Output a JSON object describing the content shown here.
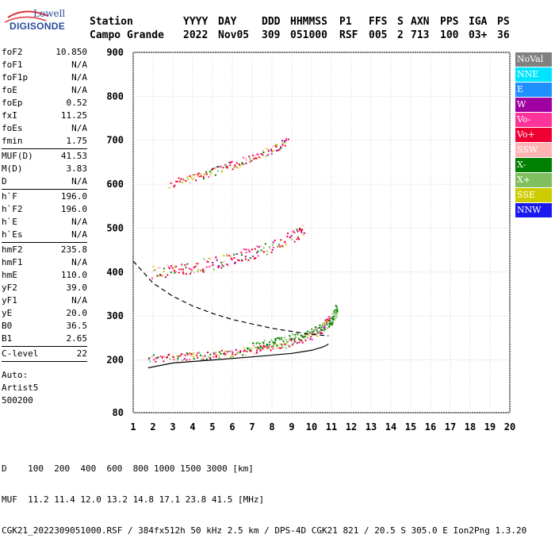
{
  "logo": {
    "line1": "Lowell",
    "line2": "DIGISONDE"
  },
  "header": {
    "row1": [
      "Station",
      "YYYY",
      "DAY",
      "DDD",
      "HHMMSS",
      "P1",
      "FFS",
      "S",
      "AXN",
      "PPS",
      "IGA",
      "PS"
    ],
    "row2": [
      "Campo Grande",
      "2022",
      "Nov05",
      "309",
      "051000",
      "RSF",
      "005",
      "2",
      "713",
      "100",
      "03+",
      "36"
    ]
  },
  "params_group1": [
    {
      "name": "foF2",
      "value": "10.850"
    },
    {
      "name": "foF1",
      "value": "N/A"
    },
    {
      "name": "foF1p",
      "value": "N/A"
    },
    {
      "name": "foE",
      "value": "N/A"
    },
    {
      "name": "foEp",
      "value": "0.52"
    },
    {
      "name": "fxI",
      "value": "11.25"
    },
    {
      "name": "foEs",
      "value": "N/A"
    },
    {
      "name": "fmin",
      "value": "1.75"
    }
  ],
  "params_group2": [
    {
      "name": "MUF(D)",
      "value": "41.53"
    },
    {
      "name": "M(D)",
      "value": "3.83"
    },
    {
      "name": "D",
      "value": "N/A"
    }
  ],
  "params_group3": [
    {
      "name": "h`F",
      "value": "196.0"
    },
    {
      "name": "h`F2",
      "value": "196.0"
    },
    {
      "name": "h`E",
      "value": "N/A"
    },
    {
      "name": "h`Es",
      "value": "N/A"
    }
  ],
  "params_group4": [
    {
      "name": "hmF2",
      "value": "235.8"
    },
    {
      "name": "hmF1",
      "value": "N/A"
    },
    {
      "name": "hmE",
      "value": "110.0"
    },
    {
      "name": "yF2",
      "value": "39.0"
    },
    {
      "name": "yF1",
      "value": "N/A"
    },
    {
      "name": "yE",
      "value": "20.0"
    },
    {
      "name": "B0",
      "value": "36.5"
    },
    {
      "name": "B1",
      "value": "2.65"
    }
  ],
  "params_group5": [
    {
      "name": "C-level",
      "value": "22"
    }
  ],
  "autoscale": {
    "label": "Auto:",
    "name": "Artist5",
    "version": "500200"
  },
  "legend": [
    {
      "label": "NoVal",
      "color": "#808080"
    },
    {
      "label": "NNE",
      "color": "#00e5ff"
    },
    {
      "label": "E",
      "color": "#1e90ff"
    },
    {
      "label": "W",
      "color": "#a000a0"
    },
    {
      "label": "Vo-",
      "color": "#ff3399"
    },
    {
      "label": "Vo+",
      "color": "#ee0033"
    },
    {
      "label": "SSW",
      "color": "#ffb3b3"
    },
    {
      "label": "X-",
      "color": "#008000"
    },
    {
      "label": "X+",
      "color": "#7fbf5f"
    },
    {
      "label": "SSE",
      "color": "#cccc00"
    },
    {
      "label": "NNW",
      "color": "#1a1aee"
    }
  ],
  "footer": {
    "line1": "D    100  200  400  600  800 1000 1500 3000 [km]",
    "line2": "MUF  11.2 11.4 12.0 13.2 14.8 17.1 23.8 41.5 [MHz]",
    "line3": "CGK21_2022309051000.RSF / 384fx512h 50 kHz 2.5 km / DPS-4D CGK21 821 / 20.5 S 305.0 E Ion2Png 1.3.20"
  },
  "chart_data": {
    "type": "scatter",
    "xlim": [
      1,
      20
    ],
    "ylim": [
      80,
      900
    ],
    "x_ticks": [
      1,
      2,
      3,
      4,
      5,
      6,
      7,
      8,
      9,
      10,
      11,
      12,
      13,
      14,
      15,
      16,
      17,
      18,
      19,
      20
    ],
    "y_ticks": [
      80,
      200,
      300,
      400,
      500,
      600,
      700,
      800,
      900
    ],
    "grid": true,
    "legend_position": "right",
    "traces": [
      {
        "label": "O-trace F2 (1st hop)",
        "points": [
          [
            1.75,
            205
          ],
          [
            3,
            207
          ],
          [
            4,
            209
          ],
          [
            5,
            212
          ],
          [
            6,
            217
          ],
          [
            7,
            224
          ],
          [
            8,
            231
          ],
          [
            9,
            240
          ],
          [
            10,
            258
          ],
          [
            10.6,
            275
          ],
          [
            10.85,
            300
          ]
        ]
      },
      {
        "label": "O-trace F2 (2nd hop)",
        "points": [
          [
            1.9,
            400
          ],
          [
            3,
            405
          ],
          [
            4,
            412
          ],
          [
            5,
            420
          ],
          [
            6,
            433
          ],
          [
            7,
            445
          ],
          [
            8,
            460
          ],
          [
            9,
            480
          ],
          [
            9.6,
            495
          ]
        ]
      },
      {
        "label": "O-trace F2 (3rd hop)",
        "points": [
          [
            2.8,
            602
          ],
          [
            4,
            616
          ],
          [
            5,
            630
          ],
          [
            6,
            645
          ],
          [
            7,
            660
          ],
          [
            8,
            680
          ],
          [
            8.8,
            700
          ]
        ]
      },
      {
        "label": "X-trace F2",
        "points": [
          [
            7,
            232
          ],
          [
            8,
            240
          ],
          [
            9,
            250
          ],
          [
            10,
            264
          ],
          [
            10.8,
            280
          ],
          [
            11.1,
            300
          ],
          [
            11.25,
            320
          ]
        ]
      }
    ],
    "profile_curve": [
      [
        1.75,
        182
      ],
      [
        3,
        193
      ],
      [
        5,
        200
      ],
      [
        7,
        207
      ],
      [
        9,
        215
      ],
      [
        10,
        222
      ],
      [
        10.6,
        230
      ],
      [
        10.85,
        236
      ]
    ],
    "muf_curve": [
      [
        1,
        425
      ],
      [
        1.5,
        400
      ],
      [
        2,
        375
      ],
      [
        3,
        345
      ],
      [
        4,
        323
      ],
      [
        5,
        306
      ],
      [
        6,
        292
      ],
      [
        7,
        282
      ],
      [
        8,
        272
      ],
      [
        9,
        265
      ],
      [
        10,
        258
      ],
      [
        10.85,
        255
      ]
    ]
  }
}
